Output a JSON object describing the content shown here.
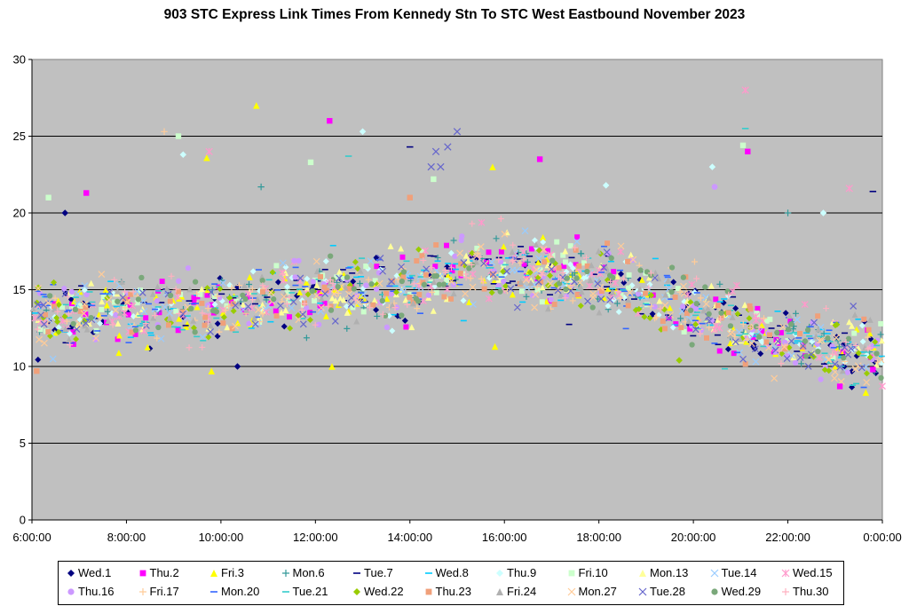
{
  "chart_data": {
    "type": "scatter",
    "title": "903 STC Express Link Times From Kennedy Stn To STC West Eastbound November 2023",
    "xlabel": "",
    "ylabel": "",
    "xlim": [
      6,
      24
    ],
    "ylim": [
      0,
      30
    ],
    "x_ticks": [
      "6:00:00",
      "8:00:00",
      "10:00:00",
      "12:00:00",
      "14:00:00",
      "16:00:00",
      "18:00:00",
      "20:00:00",
      "22:00:00",
      "0:00:00"
    ],
    "y_ticks": [
      "0",
      "5",
      "10",
      "15",
      "20",
      "25",
      "30"
    ],
    "grid": "horizontal",
    "legend_position": "bottom",
    "trend_profile_hours": [
      6.0,
      7.0,
      8.0,
      9.0,
      10.0,
      11.0,
      12.0,
      13.0,
      14.0,
      14.5,
      15.0,
      15.5,
      16.0,
      16.5,
      17.0,
      17.5,
      18.0,
      19.0,
      20.0,
      21.0,
      22.0,
      23.0,
      24.0
    ],
    "trend_profile_minutes": [
      12.8,
      13.5,
      13.8,
      13.6,
      13.8,
      14.2,
      14.8,
      15.0,
      15.2,
      15.6,
      16.0,
      16.4,
      16.6,
      16.2,
      15.9,
      15.8,
      15.6,
      14.8,
      13.8,
      12.6,
      11.8,
      11.3,
      10.8
    ],
    "outliers": [
      {
        "series": "Fri.3",
        "x": 10.75,
        "y": 27.0
      },
      {
        "series": "Thu.2",
        "x": 12.3,
        "y": 26.0
      },
      {
        "series": "Fri.17",
        "x": 8.8,
        "y": 25.3
      },
      {
        "series": "Fri.10",
        "x": 9.1,
        "y": 25.0
      },
      {
        "series": "Thu.9",
        "x": 13.0,
        "y": 25.3
      },
      {
        "series": "Tue.28",
        "x": 15.0,
        "y": 25.3
      },
      {
        "series": "Tue.28",
        "x": 14.8,
        "y": 24.3
      },
      {
        "series": "Tue.28",
        "x": 14.55,
        "y": 24.0
      },
      {
        "series": "Tue.28",
        "x": 14.45,
        "y": 23.0
      },
      {
        "series": "Tue.28",
        "x": 14.65,
        "y": 23.0
      },
      {
        "series": "Wed.15",
        "x": 21.1,
        "y": 28.0
      },
      {
        "series": "Tue.21",
        "x": 21.1,
        "y": 25.5
      },
      {
        "series": "Thu.2",
        "x": 21.15,
        "y": 24.0
      },
      {
        "series": "Fri.10",
        "x": 21.05,
        "y": 24.4
      },
      {
        "series": "Thu.2",
        "x": 16.75,
        "y": 23.5
      },
      {
        "series": "Thu.9",
        "x": 9.2,
        "y": 23.8
      },
      {
        "series": "Fri.3",
        "x": 9.7,
        "y": 23.6
      },
      {
        "series": "Wed.15",
        "x": 9.75,
        "y": 24.0
      },
      {
        "series": "Thu.9",
        "x": 20.4,
        "y": 23.0
      },
      {
        "series": "Thu.16",
        "x": 20.45,
        "y": 21.7
      },
      {
        "series": "Mon.6",
        "x": 10.85,
        "y": 21.7
      },
      {
        "series": "Thu.9",
        "x": 18.15,
        "y": 21.8
      },
      {
        "series": "Fri.10",
        "x": 11.9,
        "y": 23.3
      },
      {
        "series": "Tue.7",
        "x": 14.0,
        "y": 24.3
      },
      {
        "series": "Tue.21",
        "x": 12.7,
        "y": 23.7
      },
      {
        "series": "Wed.15",
        "x": 23.3,
        "y": 21.6
      },
      {
        "series": "Tue.7",
        "x": 23.8,
        "y": 21.4
      },
      {
        "series": "Mon.6",
        "x": 22.0,
        "y": 20.0
      },
      {
        "series": "Thu.9",
        "x": 22.75,
        "y": 20.0
      },
      {
        "series": "Thu.23",
        "x": 14.0,
        "y": 21.0
      },
      {
        "series": "Fri.3",
        "x": 15.75,
        "y": 23.0
      },
      {
        "series": "Fri.10",
        "x": 14.5,
        "y": 22.2
      },
      {
        "series": "Thu.2",
        "x": 7.15,
        "y": 21.3
      },
      {
        "series": "Fri.10",
        "x": 6.35,
        "y": 21.0
      },
      {
        "series": "Wed.1",
        "x": 6.7,
        "y": 20.0
      },
      {
        "series": "Thu.2",
        "x": 23.8,
        "y": 9.8
      },
      {
        "series": "Fri.3",
        "x": 23.65,
        "y": 8.3
      },
      {
        "series": "Thu.2",
        "x": 23.1,
        "y": 8.7
      },
      {
        "series": "Wed.1",
        "x": 10.35,
        "y": 10.0
      },
      {
        "series": "Fri.3",
        "x": 12.35,
        "y": 10.0
      },
      {
        "series": "Fri.3",
        "x": 9.8,
        "y": 9.7
      },
      {
        "series": "Thu.23",
        "x": 6.1,
        "y": 9.7
      },
      {
        "series": "Wed.22",
        "x": 19.7,
        "y": 10.4
      },
      {
        "series": "Fri.3",
        "x": 15.8,
        "y": 11.3
      }
    ],
    "series": [
      {
        "name": "Wed.1",
        "marker": "diamond",
        "color": "#000080"
      },
      {
        "name": "Thu.2",
        "marker": "square",
        "color": "#ff00ff"
      },
      {
        "name": "Fri.3",
        "marker": "triangle",
        "color": "#ffff00"
      },
      {
        "name": "Mon.6",
        "marker": "plus",
        "color": "#339999"
      },
      {
        "name": "Tue.7",
        "marker": "dash",
        "color": "#000080"
      },
      {
        "name": "Wed.8",
        "marker": "dash",
        "color": "#00ccff"
      },
      {
        "name": "Thu.9",
        "marker": "diamond",
        "color": "#ccffff"
      },
      {
        "name": "Fri.10",
        "marker": "square",
        "color": "#ccffcc"
      },
      {
        "name": "Mon.13",
        "marker": "triangle",
        "color": "#ffff99"
      },
      {
        "name": "Tue.14",
        "marker": "x",
        "color": "#99ccff"
      },
      {
        "name": "Wed.15",
        "marker": "star",
        "color": "#ff99cc"
      },
      {
        "name": "Thu.16",
        "marker": "circle",
        "color": "#cc99ff"
      },
      {
        "name": "Fri.17",
        "marker": "plus",
        "color": "#ffcc99"
      },
      {
        "name": "Mon.20",
        "marker": "dash",
        "color": "#3366ff"
      },
      {
        "name": "Tue.21",
        "marker": "dash",
        "color": "#33cccc"
      },
      {
        "name": "Wed.22",
        "marker": "diamond",
        "color": "#99cc00"
      },
      {
        "name": "Thu.23",
        "marker": "square",
        "color": "#f0a07a"
      },
      {
        "name": "Fri.24",
        "marker": "triangle",
        "color": "#b0b0b0"
      },
      {
        "name": "Mon.27",
        "marker": "x",
        "color": "#ffcc99"
      },
      {
        "name": "Tue.28",
        "marker": "x",
        "color": "#6666cc"
      },
      {
        "name": "Wed.29",
        "marker": "circle",
        "color": "#7aa87a"
      },
      {
        "name": "Thu.30",
        "marker": "plus",
        "color": "#ffb0c0"
      }
    ]
  }
}
